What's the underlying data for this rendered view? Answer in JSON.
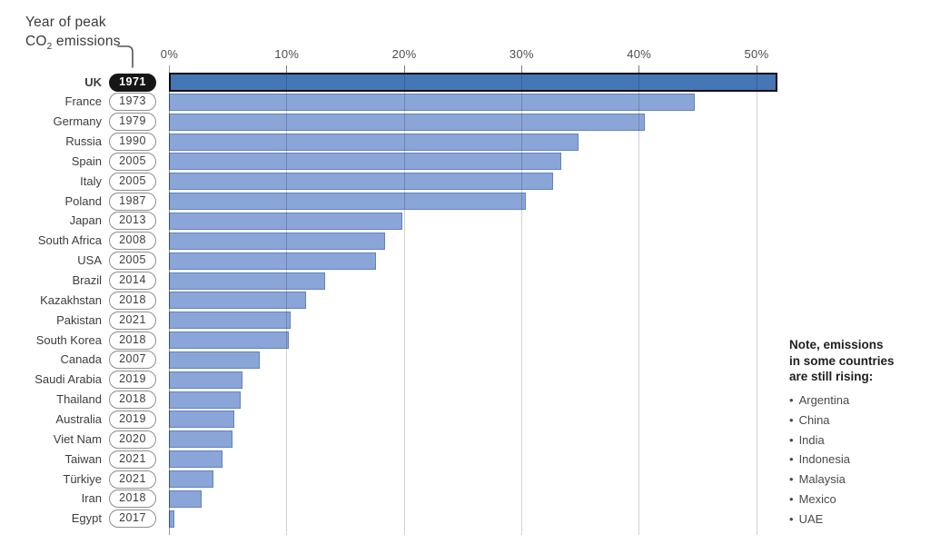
{
  "title": {
    "line1": "Year of peak",
    "line2_prefix": "CO",
    "line2_sub": "2",
    "line2_suffix": " emissions"
  },
  "chart_data": {
    "type": "bar",
    "orientation": "horizontal",
    "title": "Year of peak CO2 emissions",
    "x_tick_labels": [
      "0%",
      "10%",
      "20%",
      "30%",
      "40%",
      "50%"
    ],
    "x_ticks": [
      0,
      10,
      20,
      30,
      40,
      50
    ],
    "xlim": [
      0,
      52
    ],
    "grid": true,
    "highlight_index": 0,
    "categories": [
      "UK",
      "France",
      "Germany",
      "Russia",
      "Spain",
      "Italy",
      "Poland",
      "Japan",
      "South Africa",
      "USA",
      "Brazil",
      "Kazakhstan",
      "Pakistan",
      "South Korea",
      "Canada",
      "Saudi Arabia",
      "Thailand",
      "Australia",
      "Viet Nam",
      "Taiwan",
      "Türkiye",
      "Iran",
      "Egypt"
    ],
    "peak_years": [
      "1971",
      "1973",
      "1979",
      "1990",
      "2005",
      "2005",
      "1987",
      "2013",
      "2008",
      "2005",
      "2014",
      "2018",
      "2021",
      "2018",
      "2007",
      "2019",
      "2018",
      "2019",
      "2020",
      "2021",
      "2021",
      "2018",
      "2017"
    ],
    "values_percent": [
      51.8,
      44.8,
      40.5,
      34.9,
      33.4,
      32.7,
      30.4,
      19.9,
      18.4,
      17.6,
      13.3,
      11.7,
      10.4,
      10.2,
      7.7,
      6.3,
      6.1,
      5.6,
      5.4,
      4.6,
      3.8,
      2.8,
      0.5
    ],
    "colors": {
      "highlight_bar_fill": "#4577b7",
      "highlight_bar_border": "#0f0f0f",
      "bar_fill": "#8aa5d7",
      "bar_border": "#6182c2",
      "gridline": "rgba(0,0,0,0.18)",
      "axis_line": "rgba(0,0,0,0.40)",
      "highlight_pill_bg": "#161616",
      "highlight_pill_text": "#ffffff"
    }
  },
  "note": {
    "heading_lines": [
      "Note, emissions",
      "in some countries",
      "are still rising:"
    ],
    "items": [
      "Argentina",
      "China",
      "India",
      "Indonesia",
      "Malaysia",
      "Mexico",
      "UAE"
    ],
    "bullet": "•"
  }
}
